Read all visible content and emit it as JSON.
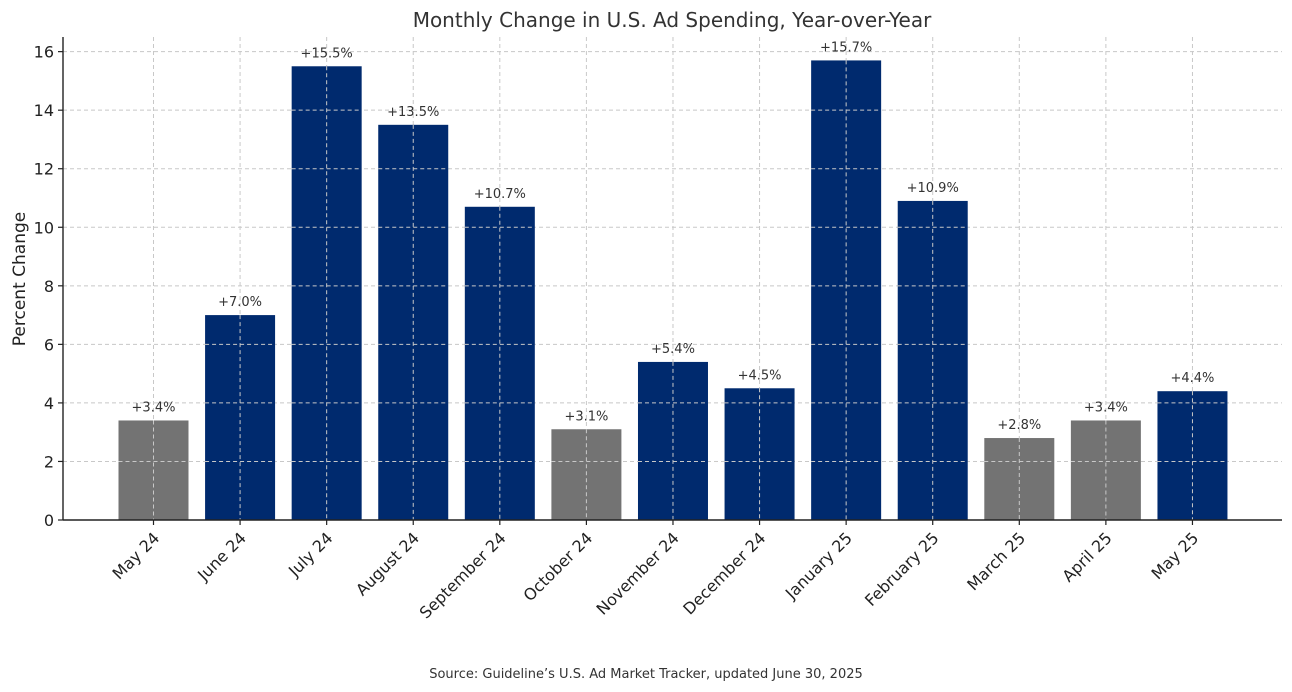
{
  "chart_data": {
    "type": "bar",
    "title": "Monthly Change in U.S. Ad Spending, Year-over-Year",
    "xlabel": "",
    "ylabel": "Percent Change",
    "ylim": [
      0,
      16.5
    ],
    "yticks": [
      "0",
      "2",
      "4",
      "6",
      "8",
      "10",
      "12",
      "14",
      "16"
    ],
    "grid": true,
    "categories": [
      "May 24",
      "June 24",
      "July 24",
      "August 24",
      "September 24",
      "October 24",
      "November 24",
      "December 24",
      "January 25",
      "February 25",
      "March 25",
      "April 25",
      "May 25"
    ],
    "values": [
      3.4,
      7.0,
      15.5,
      13.5,
      10.7,
      3.1,
      5.4,
      4.5,
      15.7,
      10.9,
      2.8,
      3.4,
      4.4
    ],
    "data_labels": [
      "+3.4%",
      "+7.0%",
      "+15.5%",
      "+13.5%",
      "+10.7%",
      "+3.1%",
      "+5.4%",
      "+4.5%",
      "+15.7%",
      "+10.9%",
      "+2.8%",
      "+3.4%",
      "+4.4%"
    ],
    "bar_colors": [
      "#737373",
      "#002a6e",
      "#002a6e",
      "#002a6e",
      "#002a6e",
      "#737373",
      "#002a6e",
      "#002a6e",
      "#002a6e",
      "#002a6e",
      "#737373",
      "#737373",
      "#002a6e"
    ],
    "source": "Source: Guideline’s U.S. Ad Market Tracker, updated June 30, 2025"
  }
}
